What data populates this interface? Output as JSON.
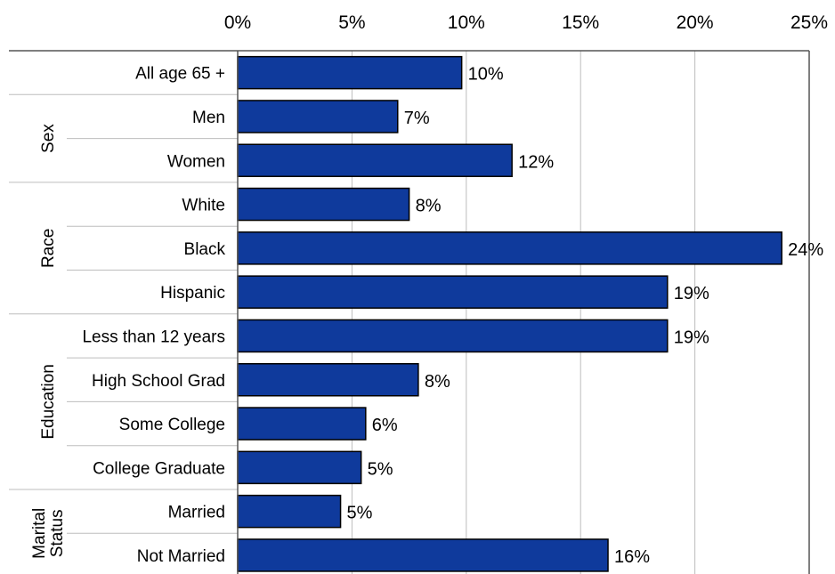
{
  "chart_data": {
    "type": "bar",
    "orientation": "horizontal",
    "xlim": [
      0,
      25
    ],
    "x_ticks": [
      0,
      5,
      10,
      15,
      20,
      25
    ],
    "x_tick_labels": [
      "0%",
      "5%",
      "10%",
      "15%",
      "20%",
      "25%"
    ],
    "x_axis_position": "top",
    "grid": true,
    "bar_color": "#0f3a9c",
    "categories": [
      "All age 65 +",
      "Men",
      "Women",
      "White",
      "Black",
      "Hispanic",
      "Less than 12 years",
      "High School Grad",
      "Some College",
      "College Graduate",
      "Married",
      "Not Married"
    ],
    "values": [
      9.8,
      7.0,
      12.0,
      7.5,
      23.8,
      18.8,
      18.8,
      7.9,
      5.6,
      5.4,
      4.5,
      16.2
    ],
    "data_labels": [
      "10%",
      "7%",
      "12%",
      "8%",
      "24%",
      "19%",
      "19%",
      "8%",
      "6%",
      "5%",
      "5%",
      "16%"
    ],
    "groups": [
      {
        "lines": [
          ""
        ],
        "start": 0,
        "count": 1
      },
      {
        "lines": [
          "Sex"
        ],
        "start": 1,
        "count": 2
      },
      {
        "lines": [
          "Race"
        ],
        "start": 3,
        "count": 3
      },
      {
        "lines": [
          "Education"
        ],
        "start": 6,
        "count": 4
      },
      {
        "lines": [
          "Marital",
          "Status"
        ],
        "start": 10,
        "count": 2
      }
    ]
  }
}
